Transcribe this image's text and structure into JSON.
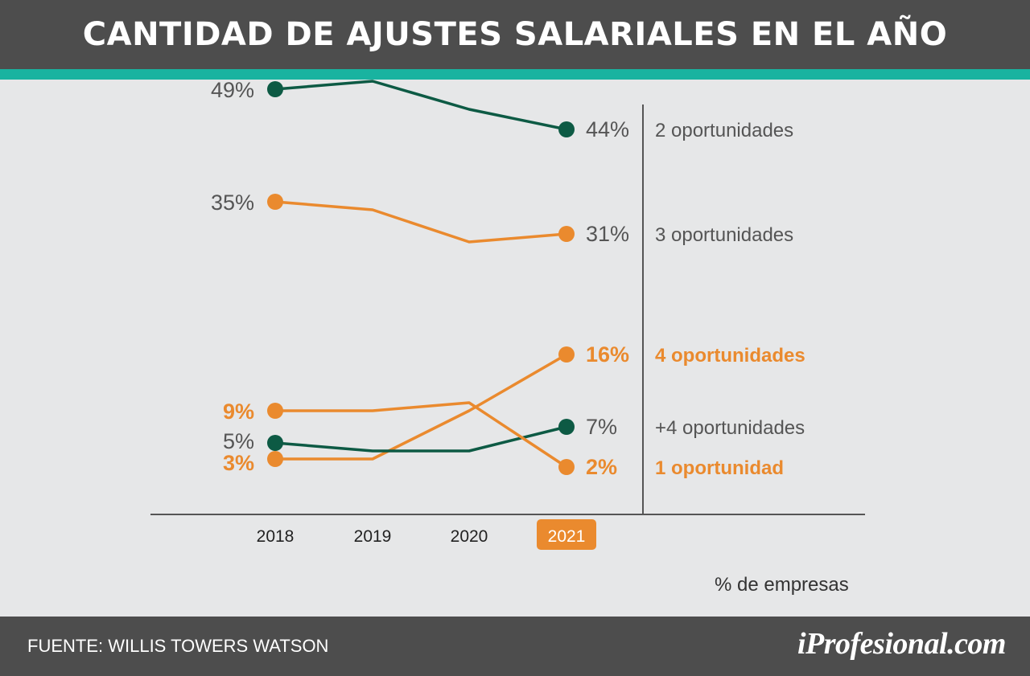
{
  "header": {
    "title": "CANTIDAD DE AJUSTES SALARIALES EN EL AÑO"
  },
  "footer": {
    "source": "FUENTE:  WILLIS TOWERS WATSON",
    "logo": "iProfesional.com"
  },
  "colors": {
    "green": "#0d5a44",
    "orange": "#ea8a2e",
    "gray_text": "#555555",
    "header_bg": "#4d4d4d",
    "accent": "#19b3a0",
    "background": "#e6e7e8"
  },
  "chart_data": {
    "type": "line",
    "title": "CANTIDAD DE AJUSTES SALARIALES EN EL AÑO",
    "xlabel": "",
    "ylabel": "",
    "unit_label": "% de empresas",
    "categories": [
      "2018",
      "2019",
      "2020",
      "2021"
    ],
    "highlight_category": "2021",
    "grid": false,
    "series": [
      {
        "name": "2 oportunidades",
        "values": [
          49,
          50,
          46.5,
          44
        ],
        "start_label": "49%",
        "end_label": "44%",
        "color": "green",
        "emphasis": false
      },
      {
        "name": "3 oportunidades",
        "values": [
          35,
          34,
          30,
          31
        ],
        "start_label": "35%",
        "end_label": "31%",
        "color": "orange",
        "emphasis": false
      },
      {
        "name": "4 oportunidades",
        "values": [
          3,
          3,
          9,
          16
        ],
        "start_label": "3%",
        "end_label": "16%",
        "color": "orange",
        "emphasis": true
      },
      {
        "name": "+4 oportunidades",
        "values": [
          5,
          4,
          4,
          7
        ],
        "start_label": "5%",
        "end_label": "7%",
        "color": "green",
        "emphasis": false
      },
      {
        "name": "1 oportunidad",
        "values": [
          9,
          9,
          10,
          2
        ],
        "start_label": "9%",
        "end_label": "2%",
        "color": "orange",
        "emphasis": true
      }
    ]
  }
}
